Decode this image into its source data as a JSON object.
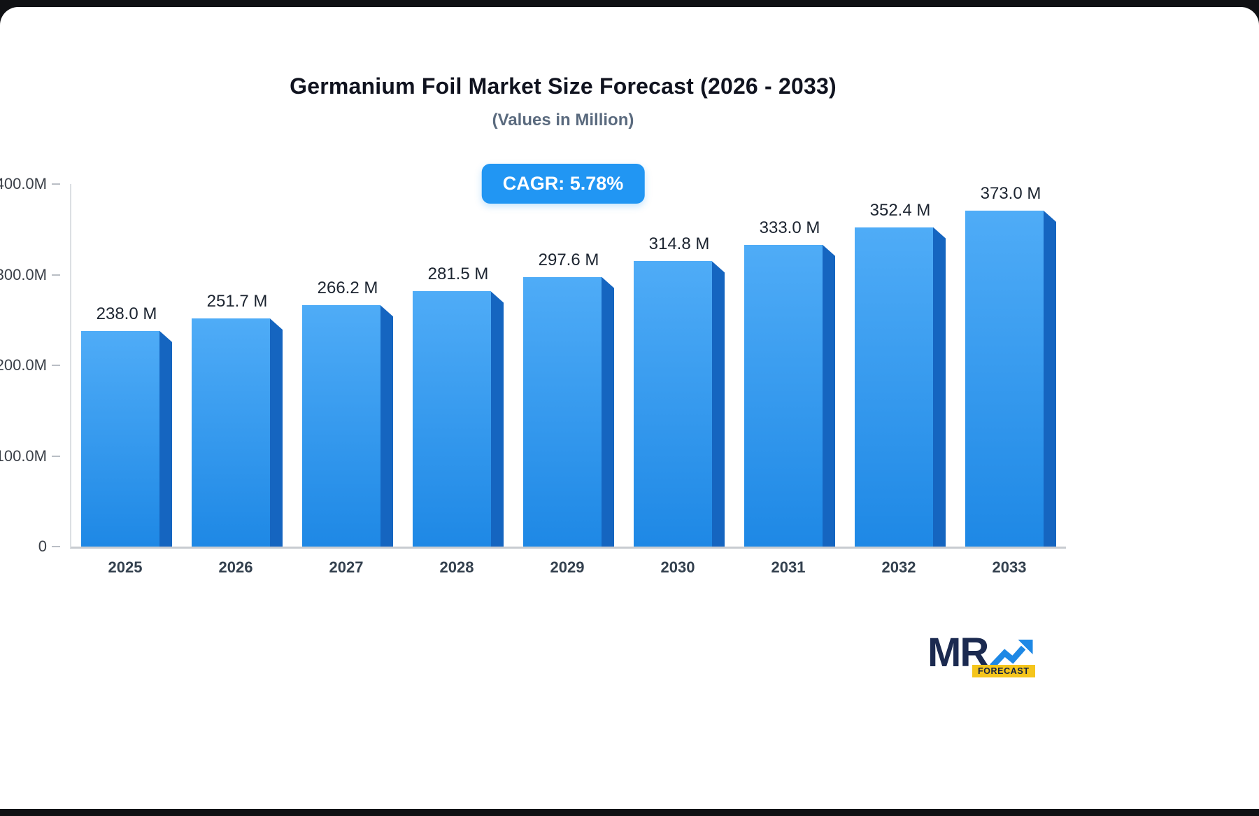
{
  "header": {
    "title": "Germanium Foil Market Size Forecast (2026 - 2033)",
    "subtitle": "(Values in Million)",
    "cagr_badge": "CAGR: 5.78%"
  },
  "chart_data": {
    "type": "bar",
    "title": "Germanium Foil Market Size Forecast (2026 - 2033)",
    "subtitle": "(Values in Million)",
    "categories": [
      "2025",
      "2026",
      "2027",
      "2028",
      "2029",
      "2030",
      "2031",
      "2032",
      "2033"
    ],
    "values": [
      238.0,
      251.7,
      266.2,
      281.5,
      297.6,
      314.8,
      333.0,
      352.4,
      373.0
    ],
    "value_labels": [
      "238.0 M",
      "251.7 M",
      "266.2 M",
      "281.5 M",
      "297.6 M",
      "314.8 M",
      "333.0 M",
      "352.4 M",
      "373.0 M"
    ],
    "y_ticks": [
      "400.0M",
      "300.0M",
      "200.0M",
      "100.0M",
      "0"
    ],
    "ylim": [
      0,
      400
    ],
    "grid": false,
    "legend": "none",
    "colors": {
      "bar_face_top": "#4FACF7",
      "bar_face_bottom": "#1E88E5",
      "bar_side": "#1565C0",
      "badge_bg": "#2196F3",
      "axis": "#C8CCD1"
    }
  },
  "logo": {
    "mr": "MR",
    "forecast": "FORECAST"
  }
}
